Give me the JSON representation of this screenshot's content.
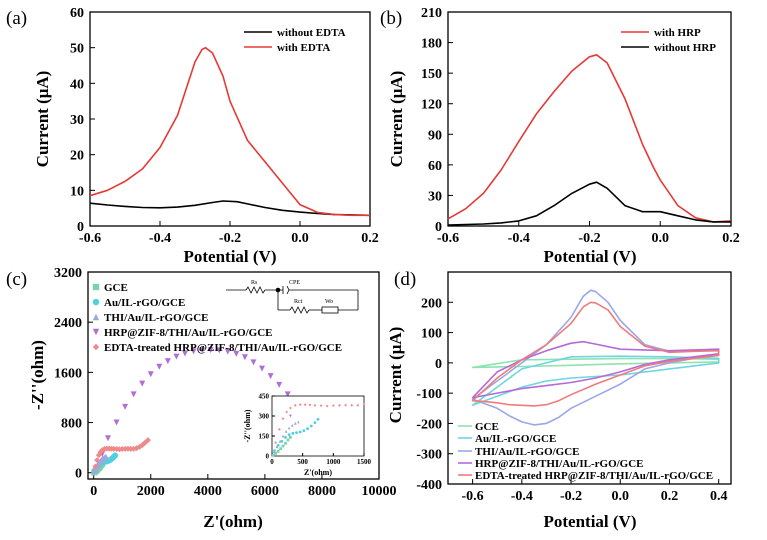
{
  "chart_data": [
    {
      "panel_label": "(a)",
      "type": "line",
      "xlabel": "Potential (V)",
      "ylabel": "Current (μA)",
      "xlim": [
        -0.6,
        0.2
      ],
      "ylim": [
        0,
        60
      ],
      "xticks": [
        "-0.6",
        "-0.4",
        "-0.2",
        "0.0",
        "0.2"
      ],
      "yticks": [
        "0",
        "10",
        "20",
        "30",
        "40",
        "50",
        "60"
      ],
      "legend_position": "top-right",
      "series": [
        {
          "name": "without EDTA",
          "color": "#000000",
          "x": [
            -0.6,
            -0.55,
            -0.5,
            -0.45,
            -0.4,
            -0.35,
            -0.3,
            -0.25,
            -0.22,
            -0.18,
            -0.15,
            -0.1,
            -0.05,
            0.0,
            0.05,
            0.1,
            0.15,
            0.2
          ],
          "y": [
            6.4,
            5.9,
            5.5,
            5.2,
            5.1,
            5.3,
            5.8,
            6.6,
            7.0,
            6.8,
            6.2,
            5.2,
            4.4,
            3.9,
            3.5,
            3.2,
            3.1,
            3.0
          ]
        },
        {
          "name": "with EDTA",
          "color": "#e53935",
          "x": [
            -0.6,
            -0.55,
            -0.5,
            -0.45,
            -0.4,
            -0.35,
            -0.32,
            -0.3,
            -0.28,
            -0.27,
            -0.25,
            -0.22,
            -0.2,
            -0.15,
            -0.1,
            -0.05,
            0.0,
            0.05,
            0.1,
            0.15,
            0.2
          ],
          "y": [
            8.5,
            10,
            12.5,
            16,
            22,
            31,
            40,
            46,
            49.5,
            50,
            48.5,
            42,
            35,
            24,
            18,
            12,
            6,
            3.8,
            3.2,
            3.0,
            3.0
          ]
        }
      ]
    },
    {
      "panel_label": "(b)",
      "type": "line",
      "xlabel": "Potential (V)",
      "ylabel": "Current (μA)",
      "xlim": [
        -0.6,
        0.2
      ],
      "ylim": [
        0,
        210
      ],
      "xticks": [
        "-0.6",
        "-0.4",
        "-0.2",
        "0.0",
        "0.2"
      ],
      "yticks": [
        "0",
        "30",
        "60",
        "90",
        "120",
        "150",
        "180",
        "210"
      ],
      "legend_position": "top-right",
      "series": [
        {
          "name": "with HRP",
          "color": "#e53935",
          "x": [
            -0.6,
            -0.55,
            -0.5,
            -0.45,
            -0.4,
            -0.35,
            -0.3,
            -0.25,
            -0.2,
            -0.18,
            -0.15,
            -0.1,
            -0.05,
            -0.02,
            0.0,
            0.05,
            0.1,
            0.15,
            0.2
          ],
          "y": [
            7,
            17,
            32,
            55,
            83,
            110,
            132,
            152,
            166,
            168,
            160,
            125,
            80,
            58,
            45,
            20,
            8,
            4,
            5
          ]
        },
        {
          "name": "without HRP",
          "color": "#000000",
          "x": [
            -0.6,
            -0.55,
            -0.5,
            -0.45,
            -0.4,
            -0.35,
            -0.3,
            -0.25,
            -0.2,
            -0.18,
            -0.15,
            -0.1,
            -0.05,
            0.0,
            0.05,
            0.1,
            0.15,
            0.2
          ],
          "y": [
            1,
            1.5,
            2,
            3,
            5,
            10,
            20,
            32,
            41,
            43,
            37,
            20,
            14,
            14,
            10,
            6,
            4,
            4
          ]
        }
      ]
    },
    {
      "panel_label": "(c)",
      "type": "scatter",
      "xlabel": "Z'(ohm)",
      "ylabel": "-Z''(ohm)",
      "xlim": [
        -200,
        10000
      ],
      "ylim": [
        -100,
        3200
      ],
      "xticks": [
        "0",
        "2000",
        "4000",
        "6000",
        "8000",
        "10000"
      ],
      "yticks": [
        "0",
        "800",
        "1600",
        "2400",
        "3200"
      ],
      "legend_position": "top-left",
      "series": [
        {
          "name": "GCE",
          "color": "#7dd3a8",
          "marker": "square",
          "x": [
            20,
            60,
            100,
            140,
            180,
            220,
            260,
            300
          ],
          "y": [
            5,
            20,
            35,
            55,
            75,
            95,
            120,
            140
          ]
        },
        {
          "name": "Au/IL-rGO/GCE",
          "color": "#4dd0e1",
          "marker": "circle",
          "x": [
            40,
            100,
            160,
            220,
            280,
            340,
            400,
            460,
            520,
            580,
            640,
            700,
            750
          ],
          "y": [
            40,
            80,
            110,
            140,
            160,
            170,
            175,
            180,
            190,
            205,
            225,
            250,
            275
          ]
        },
        {
          "name": "THI/Au/IL-rGO/GCE",
          "color": "#9fa8da",
          "marker": "triangle-up",
          "x": [
            30,
            80,
            130,
            180,
            230,
            280,
            330,
            380,
            430
          ],
          "y": [
            30,
            70,
            110,
            150,
            185,
            210,
            230,
            245,
            255
          ]
        },
        {
          "name": "HRP@ZIF-8/THI/Au/IL-rGO/GCE",
          "color": "#b06fd8",
          "marker": "triangle-down",
          "x": [
            300,
            500,
            800,
            1100,
            1400,
            1700,
            2000,
            2300,
            2600,
            2900,
            3200,
            3500,
            3800,
            4100,
            4400,
            4700,
            5000,
            5300,
            5600,
            5900,
            6200,
            6500,
            6800,
            7100,
            7400,
            7700,
            8000,
            8300,
            8500
          ],
          "y": [
            300,
            550,
            800,
            1050,
            1250,
            1420,
            1570,
            1690,
            1780,
            1850,
            1900,
            1935,
            1950,
            1955,
            1950,
            1930,
            1895,
            1840,
            1760,
            1660,
            1540,
            1400,
            1250,
            1080,
            900,
            720,
            560,
            460,
            450
          ]
        },
        {
          "name": "EDTA-treated HRP@ZIF-8/THI/Au/IL-rGO/GCE",
          "color": "#f08a8a",
          "marker": "diamond",
          "x": [
            60,
            120,
            180,
            240,
            300,
            380,
            460,
            540,
            620,
            700,
            800,
            900,
            1000,
            1100,
            1200,
            1300,
            1400,
            1500,
            1600,
            1700,
            1800,
            1900
          ],
          "y": [
            100,
            200,
            280,
            330,
            360,
            380,
            385,
            385,
            383,
            380,
            378,
            375,
            378,
            380,
            382,
            380,
            380,
            390,
            410,
            440,
            480,
            520
          ]
        }
      ],
      "inset": {
        "xlim": [
          0,
          1500
        ],
        "ylim": [
          0,
          450
        ],
        "xticks": [
          "0",
          "500",
          "1000",
          "1500"
        ],
        "yticks": [
          "0",
          "150",
          "300",
          "450"
        ],
        "xlabel": "Z'(ohm)",
        "ylabel": "-Z''(ohm)"
      },
      "circuit_labels": {
        "rs": "Rs",
        "cpe": "CPE",
        "rct": "Rct",
        "wo": "Wo"
      }
    },
    {
      "panel_label": "(d)",
      "type": "line",
      "xlabel": "Potential (V)",
      "ylabel": "Current (μA)",
      "xlim": [
        -0.7,
        0.45
      ],
      "ylim": [
        -400,
        300
      ],
      "xticks": [
        "-0.6",
        "-0.4",
        "-0.2",
        "0.0",
        "0.2",
        "0.4"
      ],
      "yticks": [
        "-400",
        "-300",
        "-200",
        "-100",
        "0",
        "100",
        "200"
      ],
      "legend_position": "bottom-left",
      "series": [
        {
          "name": "GCE",
          "color": "#8fe3b0",
          "x": [
            -0.6,
            -0.4,
            -0.2,
            0.0,
            0.2,
            0.4,
            0.4,
            0.2,
            0.0,
            -0.2,
            -0.4,
            -0.6
          ],
          "y": [
            -15,
            -12,
            -8,
            -3,
            0,
            3,
            12,
            14,
            14,
            12,
            10,
            -15
          ]
        },
        {
          "name": "Au/IL-rGO/GCE",
          "color": "#6fd6e0",
          "x": [
            -0.6,
            -0.5,
            -0.4,
            -0.3,
            -0.2,
            -0.1,
            0.0,
            0.2,
            0.4,
            0.4,
            0.2,
            0.0,
            -0.2,
            -0.4,
            -0.6
          ],
          "y": [
            -140,
            -110,
            -80,
            -60,
            -50,
            -45,
            -40,
            -20,
            0,
            15,
            20,
            22,
            20,
            -20,
            -140
          ]
        },
        {
          "name": "THI/Au/IL-rGO/GCE",
          "color": "#9aa8e8",
          "x": [
            -0.6,
            -0.55,
            -0.5,
            -0.45,
            -0.4,
            -0.35,
            -0.3,
            -0.25,
            -0.2,
            -0.1,
            0.0,
            0.1,
            0.2,
            0.3,
            0.4,
            0.4,
            0.3,
            0.2,
            0.1,
            0.0,
            -0.05,
            -0.1,
            -0.12,
            -0.15,
            -0.2,
            -0.3,
            -0.4,
            -0.5,
            -0.6
          ],
          "y": [
            -120,
            -135,
            -150,
            -175,
            -195,
            -205,
            -200,
            -180,
            -150,
            -110,
            -70,
            -20,
            0,
            15,
            25,
            45,
            40,
            38,
            60,
            140,
            200,
            235,
            240,
            220,
            150,
            60,
            0,
            -60,
            -120
          ]
        },
        {
          "name": "HRP@ZIF-8/THI/Au/IL-rGO/GCE",
          "color": "#b56ad8",
          "x": [
            -0.6,
            -0.5,
            -0.4,
            -0.3,
            -0.2,
            -0.1,
            0.0,
            0.1,
            0.2,
            0.4,
            0.4,
            0.2,
            0.0,
            -0.1,
            -0.15,
            -0.2,
            -0.3,
            -0.4,
            -0.5,
            -0.6
          ],
          "y": [
            -115,
            -100,
            -85,
            -75,
            -65,
            -50,
            -30,
            -5,
            10,
            30,
            45,
            40,
            45,
            62,
            70,
            65,
            40,
            10,
            -30,
            -115
          ]
        },
        {
          "name": "EDTA-treated HRP@ZIF-8/THI/Au/IL-rGO/GCE",
          "color": "#f07b7b",
          "x": [
            -0.6,
            -0.55,
            -0.5,
            -0.45,
            -0.4,
            -0.35,
            -0.3,
            -0.25,
            -0.2,
            -0.1,
            0.0,
            0.1,
            0.2,
            0.3,
            0.4,
            0.4,
            0.3,
            0.2,
            0.1,
            0.0,
            -0.05,
            -0.1,
            -0.12,
            -0.15,
            -0.2,
            -0.3,
            -0.4,
            -0.5,
            -0.6
          ],
          "y": [
            -125,
            -128,
            -132,
            -138,
            -140,
            -142,
            -138,
            -125,
            -105,
            -70,
            -40,
            -10,
            5,
            15,
            25,
            40,
            38,
            35,
            55,
            120,
            175,
            198,
            200,
            185,
            130,
            60,
            10,
            -50,
            -125
          ]
        }
      ]
    }
  ]
}
